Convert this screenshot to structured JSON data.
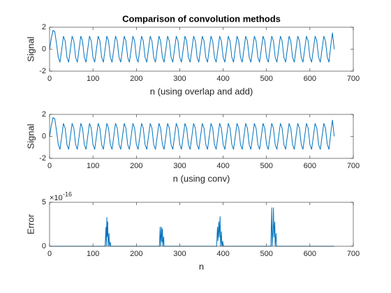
{
  "chart_data": [
    {
      "type": "line",
      "title": "Comparison of convolution methods",
      "xlabel": "n (using overlap and add)",
      "ylabel": "Signal",
      "xlim": [
        0,
        700
      ],
      "xticks": [
        0,
        100,
        200,
        300,
        400,
        500,
        600,
        700
      ],
      "ylim": [
        -2,
        2
      ],
      "yticks": [
        -2,
        0,
        2
      ],
      "series": [
        {
          "color": "#0072bd",
          "x": [
            0,
            4,
            8,
            12,
            16,
            20,
            24,
            28,
            32,
            36,
            40,
            44,
            48,
            52,
            56,
            60,
            64,
            68,
            72,
            76,
            80,
            84,
            88,
            92,
            96,
            100,
            104,
            108,
            112,
            116,
            120,
            124,
            128,
            132,
            136,
            140,
            144,
            148,
            152,
            156,
            160,
            164,
            168,
            172,
            176,
            180,
            184,
            188,
            192,
            196,
            200,
            204,
            208,
            212,
            216,
            220,
            224,
            228,
            232,
            236,
            240,
            244,
            248,
            252,
            256,
            260,
            264,
            268,
            272,
            276,
            280,
            284,
            288,
            292,
            296,
            300,
            304,
            308,
            312,
            316,
            320,
            324,
            328,
            332,
            336,
            340,
            344,
            348,
            352,
            356,
            360,
            364,
            368,
            372,
            376,
            380,
            384,
            388,
            392,
            396,
            400,
            404,
            408,
            412,
            416,
            420,
            424,
            428,
            432,
            436,
            440,
            444,
            448,
            452,
            456,
            460,
            464,
            468,
            472,
            476,
            480,
            484,
            488,
            492,
            496,
            500,
            504,
            508,
            512,
            516,
            520,
            524,
            528,
            532,
            536,
            540,
            544,
            548,
            552,
            556,
            560,
            564,
            568,
            572,
            576,
            580,
            584,
            588,
            592,
            596,
            600,
            604,
            608,
            612,
            616,
            620,
            624,
            628,
            632,
            636,
            640,
            644,
            648,
            652,
            656
          ],
          "values": [
            0,
            1.0,
            1.7,
            1.6,
            0.5,
            -0.73,
            -1.19,
            0,
            1.19,
            0.73,
            -0.73,
            -1.19,
            0,
            1.19,
            0.73,
            -0.73,
            -1.19,
            0,
            1.19,
            0.73,
            -0.73,
            -1.19,
            0,
            1.19,
            0.73,
            -0.73,
            -1.19,
            0,
            1.19,
            0.73,
            -0.73,
            -1.19,
            0,
            1.19,
            0.73,
            -0.73,
            -1.19,
            0,
            1.19,
            0.73,
            -0.73,
            -1.19,
            0,
            1.19,
            0.73,
            -0.73,
            -1.19,
            0,
            1.19,
            0.73,
            -0.73,
            -1.19,
            0,
            1.19,
            0.73,
            -0.73,
            -1.19,
            0,
            1.19,
            0.73,
            -0.73,
            -1.19,
            0,
            1.19,
            0.73,
            -0.73,
            -1.19,
            0,
            1.19,
            0.73,
            -0.73,
            -1.19,
            0,
            1.19,
            0.73,
            -0.73,
            -1.19,
            0,
            1.19,
            0.73,
            -0.73,
            -1.19,
            0,
            1.19,
            0.73,
            -0.73,
            -1.19,
            0,
            1.19,
            0.73,
            -0.73,
            -1.19,
            0,
            1.19,
            0.73,
            -0.73,
            -1.19,
            0,
            1.19,
            0.73,
            -0.73,
            -1.19,
            0,
            1.19,
            0.73,
            -0.73,
            -1.19,
            0,
            1.19,
            0.73,
            -0.73,
            -1.19,
            0,
            1.19,
            0.73,
            -0.73,
            -1.19,
            0,
            1.19,
            0.73,
            -0.73,
            -1.19,
            0,
            1.19,
            0.73,
            -0.73,
            -1.19,
            0,
            1.19,
            0.73,
            -0.73,
            -1.19,
            0,
            1.19,
            0.73,
            -0.73,
            -1.19,
            0,
            1.19,
            0.73,
            -0.73,
            -1.19,
            0,
            1.19,
            0.73,
            -0.73,
            -1.19,
            0,
            1.19,
            0.73,
            -0.73,
            -1.19,
            0,
            1.19,
            0.73,
            -0.73,
            -1.19,
            0,
            1.19,
            0.73,
            -0.73,
            -1.19,
            0.3,
            1.5,
            0
          ]
        }
      ]
    },
    {
      "type": "line",
      "xlabel": "n (using conv)",
      "ylabel": "Signal",
      "xlim": [
        0,
        700
      ],
      "xticks": [
        0,
        100,
        200,
        300,
        400,
        500,
        600,
        700
      ],
      "ylim": [
        -2,
        2
      ],
      "yticks": [
        -2,
        0,
        2
      ],
      "series": [
        {
          "color": "#0072bd",
          "x": [
            0,
            4,
            8,
            12,
            16,
            20,
            24,
            28,
            32,
            36,
            40,
            44,
            48,
            52,
            56,
            60,
            64,
            68,
            72,
            76,
            80,
            84,
            88,
            92,
            96,
            100,
            104,
            108,
            112,
            116,
            120,
            124,
            128,
            132,
            136,
            140,
            144,
            148,
            152,
            156,
            160,
            164,
            168,
            172,
            176,
            180,
            184,
            188,
            192,
            196,
            200,
            204,
            208,
            212,
            216,
            220,
            224,
            228,
            232,
            236,
            240,
            244,
            248,
            252,
            256,
            260,
            264,
            268,
            272,
            276,
            280,
            284,
            288,
            292,
            296,
            300,
            304,
            308,
            312,
            316,
            320,
            324,
            328,
            332,
            336,
            340,
            344,
            348,
            352,
            356,
            360,
            364,
            368,
            372,
            376,
            380,
            384,
            388,
            392,
            396,
            400,
            404,
            408,
            412,
            416,
            420,
            424,
            428,
            432,
            436,
            440,
            444,
            448,
            452,
            456,
            460,
            464,
            468,
            472,
            476,
            480,
            484,
            488,
            492,
            496,
            500,
            504,
            508,
            512,
            516,
            520,
            524,
            528,
            532,
            536,
            540,
            544,
            548,
            552,
            556,
            560,
            564,
            568,
            572,
            576,
            580,
            584,
            588,
            592,
            596,
            600,
            604,
            608,
            612,
            616,
            620,
            624,
            628,
            632,
            636,
            640,
            644,
            648,
            652,
            656
          ],
          "values": [
            0,
            1.0,
            1.7,
            1.6,
            0.5,
            -0.73,
            -1.19,
            0,
            1.19,
            0.73,
            -0.73,
            -1.19,
            0,
            1.19,
            0.73,
            -0.73,
            -1.19,
            0,
            1.19,
            0.73,
            -0.73,
            -1.19,
            0,
            1.19,
            0.73,
            -0.73,
            -1.19,
            0,
            1.19,
            0.73,
            -0.73,
            -1.19,
            0,
            1.19,
            0.73,
            -0.73,
            -1.19,
            0,
            1.19,
            0.73,
            -0.73,
            -1.19,
            0,
            1.19,
            0.73,
            -0.73,
            -1.19,
            0,
            1.19,
            0.73,
            -0.73,
            -1.19,
            0,
            1.19,
            0.73,
            -0.73,
            -1.19,
            0,
            1.19,
            0.73,
            -0.73,
            -1.19,
            0,
            1.19,
            0.73,
            -0.73,
            -1.19,
            0,
            1.19,
            0.73,
            -0.73,
            -1.19,
            0,
            1.19,
            0.73,
            -0.73,
            -1.19,
            0,
            1.19,
            0.73,
            -0.73,
            -1.19,
            0,
            1.19,
            0.73,
            -0.73,
            -1.19,
            0,
            1.19,
            0.73,
            -0.73,
            -1.19,
            0,
            1.19,
            0.73,
            -0.73,
            -1.19,
            0,
            1.19,
            0.73,
            -0.73,
            -1.19,
            0,
            1.19,
            0.73,
            -0.73,
            -1.19,
            0,
            1.19,
            0.73,
            -0.73,
            -1.19,
            0,
            1.19,
            0.73,
            -0.73,
            -1.19,
            0,
            1.19,
            0.73,
            -0.73,
            -1.19,
            0,
            1.19,
            0.73,
            -0.73,
            -1.19,
            0,
            1.19,
            0.73,
            -0.73,
            -1.19,
            0,
            1.19,
            0.73,
            -0.73,
            -1.19,
            0,
            1.19,
            0.73,
            -0.73,
            -1.19,
            0,
            1.19,
            0.73,
            -0.73,
            -1.19,
            0,
            1.19,
            0.73,
            -0.73,
            -1.19,
            0,
            1.19,
            0.73,
            -0.73,
            -1.19,
            0,
            1.19,
            0.73,
            -0.73,
            -1.19,
            0.3,
            1.5,
            0
          ]
        }
      ]
    },
    {
      "type": "line",
      "xlabel": "n",
      "ylabel": "Error",
      "y_exponent": {
        "base": "×10",
        "power": "-16"
      },
      "xlim": [
        0,
        700
      ],
      "xticks": [
        0,
        100,
        200,
        300,
        400,
        500,
        600,
        700
      ],
      "ylim": [
        0,
        5e-16
      ],
      "yticks": [
        0,
        {
          "value": 5e-16,
          "label": "5"
        }
      ],
      "series": [
        {
          "color": "#0072bd",
          "x": [
            0,
            128,
            130,
            131,
            132,
            133,
            134,
            135,
            137,
            138,
            140,
            141,
            253,
            255,
            256,
            258,
            259,
            260,
            261,
            263,
            264,
            385,
            387,
            388,
            390,
            391,
            393,
            394,
            396,
            397,
            399,
            400,
            510,
            512,
            513,
            515,
            516,
            517,
            519,
            520,
            522,
            523,
            656
          ],
          "values": [
            0,
            0,
            2.2e-16,
            0,
            3.3e-16,
            1.1e-16,
            2.8e-16,
            0,
            1.5e-16,
            0,
            5e-17,
            0,
            0,
            2.2e-16,
            0,
            2.2e-16,
            5e-17,
            2e-16,
            0,
            1.1e-16,
            0,
            0,
            2.2e-16,
            6e-17,
            2.8e-16,
            1e-16,
            3.4e-16,
            0,
            1.7e-16,
            0,
            6e-17,
            0,
            0,
            4.4e-16,
            0,
            2.2e-16,
            4.4e-16,
            1e-16,
            2.8e-16,
            0,
            1.5e-16,
            0,
            0
          ]
        }
      ]
    }
  ]
}
